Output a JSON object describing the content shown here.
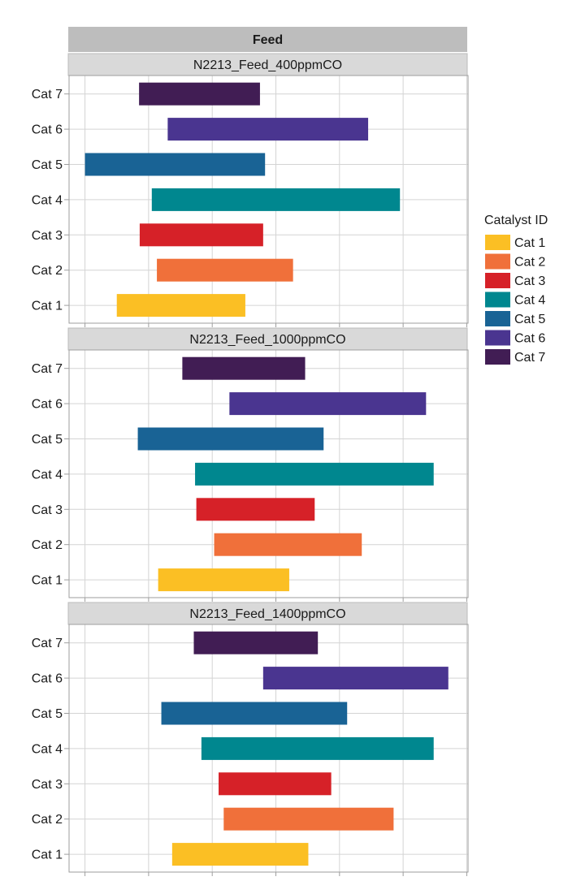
{
  "chart_data": {
    "type": "bar",
    "orientation": "horizontal-range",
    "title": "Feed",
    "x_axis": {
      "tick_labels_shown": false,
      "grid": true
    },
    "categories": [
      "Cat 7",
      "Cat 6",
      "Cat 5",
      "Cat 4",
      "Cat 3",
      "Cat 2",
      "Cat 1"
    ],
    "panels": [
      {
        "label": "N2213_Feed_400ppmCO",
        "ranges": {
          "Cat 7": [
            1.1,
            3.0
          ],
          "Cat 6": [
            1.55,
            4.7
          ],
          "Cat 5": [
            0.25,
            3.08
          ],
          "Cat 4": [
            1.3,
            5.2
          ],
          "Cat 3": [
            1.11,
            3.05
          ],
          "Cat 2": [
            1.38,
            3.52
          ],
          "Cat 1": [
            0.75,
            2.77
          ]
        }
      },
      {
        "label": "N2213_Feed_1000ppmCO",
        "ranges": {
          "Cat 7": [
            1.78,
            3.71
          ],
          "Cat 6": [
            2.52,
            5.61
          ],
          "Cat 5": [
            1.08,
            4.0
          ],
          "Cat 4": [
            1.98,
            5.73
          ],
          "Cat 3": [
            2.0,
            3.86
          ],
          "Cat 2": [
            2.28,
            4.6
          ],
          "Cat 1": [
            1.4,
            3.46
          ]
        }
      },
      {
        "label": "N2213_Feed_1400ppmCO",
        "ranges": {
          "Cat 7": [
            1.96,
            3.91
          ],
          "Cat 6": [
            3.05,
            5.96
          ],
          "Cat 5": [
            1.45,
            4.37
          ],
          "Cat 4": [
            2.08,
            5.73
          ],
          "Cat 3": [
            2.35,
            4.12
          ],
          "Cat 2": [
            2.43,
            5.1
          ],
          "Cat 1": [
            1.62,
            3.76
          ]
        }
      }
    ],
    "legend": {
      "title": "Catalyst ID",
      "position": "right",
      "items": [
        {
          "name": "Cat 1",
          "color": "#FBBF24"
        },
        {
          "name": "Cat 2",
          "color": "#F0703A"
        },
        {
          "name": "Cat 3",
          "color": "#D62128"
        },
        {
          "name": "Cat 4",
          "color": "#00878F"
        },
        {
          "name": "Cat 5",
          "color": "#196395"
        },
        {
          "name": "Cat 6",
          "color": "#4A3590"
        },
        {
          "name": "Cat 7",
          "color": "#411D54"
        }
      ]
    }
  }
}
